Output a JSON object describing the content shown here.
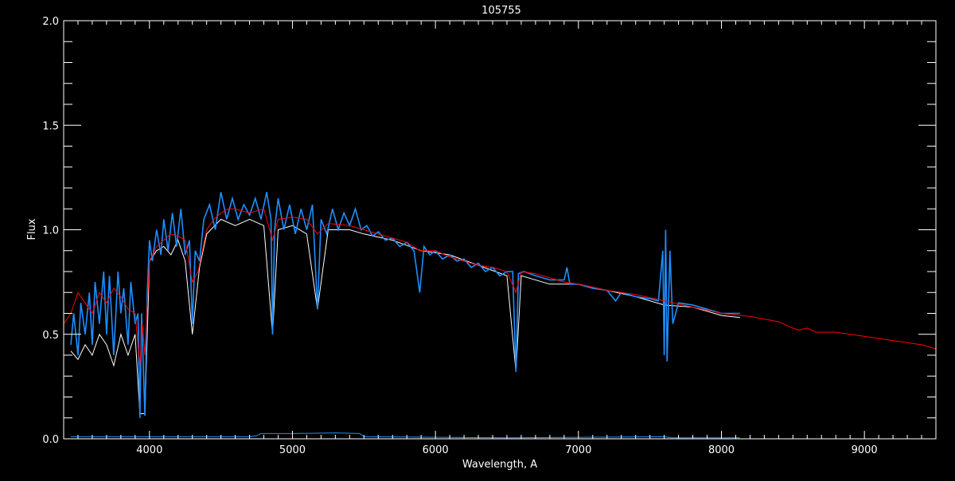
{
  "chart_data": {
    "type": "line",
    "title": "105755",
    "xlabel": "Wavelength, A",
    "ylabel": "Flux",
    "xlim": [
      3400,
      9500
    ],
    "ylim": [
      0,
      2.0
    ],
    "x_major_ticks": [
      4000,
      5000,
      6000,
      7000,
      8000,
      9000
    ],
    "x_tick_labels": [
      "4000",
      "5000",
      "6000",
      "7000",
      "8000",
      "9000"
    ],
    "x_minor_step": 100,
    "y_major_ticks": [
      0,
      0.5,
      1.0,
      1.5,
      2.0
    ],
    "y_tick_labels": [
      "0.0",
      "0.5",
      "1.0",
      "1.5",
      "2.0"
    ],
    "y_minor_step": 0.1,
    "grid": false,
    "background": "#000000",
    "axis_color": "#ffffff",
    "series": [
      {
        "color": "#ffffff",
        "points": [
          [
            3450,
            0.42
          ],
          [
            3500,
            0.38
          ],
          [
            3550,
            0.45
          ],
          [
            3600,
            0.4
          ],
          [
            3650,
            0.5
          ],
          [
            3700,
            0.45
          ],
          [
            3750,
            0.35
          ],
          [
            3800,
            0.5
          ],
          [
            3850,
            0.4
          ],
          [
            3900,
            0.5
          ],
          [
            3933,
            0.12
          ],
          [
            3968,
            0.12
          ],
          [
            4000,
            0.85
          ],
          [
            4050,
            0.9
          ],
          [
            4100,
            0.92
          ],
          [
            4150,
            0.88
          ],
          [
            4200,
            0.95
          ],
          [
            4250,
            0.85
          ],
          [
            4300,
            0.5
          ],
          [
            4350,
            0.82
          ],
          [
            4400,
            0.98
          ],
          [
            4500,
            1.05
          ],
          [
            4600,
            1.02
          ],
          [
            4700,
            1.05
          ],
          [
            4800,
            1.02
          ],
          [
            4861,
            0.5
          ],
          [
            4900,
            1.0
          ],
          [
            5000,
            1.02
          ],
          [
            5100,
            0.98
          ],
          [
            5175,
            0.62
          ],
          [
            5250,
            1.0
          ],
          [
            5400,
            1.0
          ],
          [
            5500,
            0.98
          ],
          [
            5700,
            0.95
          ],
          [
            5900,
            0.9
          ],
          [
            6100,
            0.88
          ],
          [
            6300,
            0.83
          ],
          [
            6500,
            0.78
          ],
          [
            6563,
            0.32
          ],
          [
            6600,
            0.78
          ],
          [
            6800,
            0.74
          ],
          [
            7000,
            0.74
          ],
          [
            7200,
            0.71
          ],
          [
            7400,
            0.68
          ],
          [
            7600,
            0.64
          ],
          [
            7800,
            0.63
          ],
          [
            8000,
            0.59
          ],
          [
            8130,
            0.58
          ]
        ]
      },
      {
        "color": "#1e8fff",
        "points": [
          [
            3450,
            0.45
          ],
          [
            3470,
            0.6
          ],
          [
            3500,
            0.4
          ],
          [
            3520,
            0.65
          ],
          [
            3550,
            0.5
          ],
          [
            3580,
            0.7
          ],
          [
            3600,
            0.45
          ],
          [
            3620,
            0.75
          ],
          [
            3650,
            0.55
          ],
          [
            3680,
            0.8
          ],
          [
            3700,
            0.5
          ],
          [
            3720,
            0.78
          ],
          [
            3750,
            0.4
          ],
          [
            3780,
            0.8
          ],
          [
            3800,
            0.6
          ],
          [
            3820,
            0.72
          ],
          [
            3850,
            0.45
          ],
          [
            3870,
            0.75
          ],
          [
            3900,
            0.55
          ],
          [
            3920,
            0.6
          ],
          [
            3933,
            0.1
          ],
          [
            3945,
            0.6
          ],
          [
            3968,
            0.11
          ],
          [
            3985,
            0.7
          ],
          [
            4000,
            0.95
          ],
          [
            4020,
            0.85
          ],
          [
            4050,
            1.0
          ],
          [
            4080,
            0.88
          ],
          [
            4100,
            1.05
          ],
          [
            4130,
            0.9
          ],
          [
            4160,
            1.08
          ],
          [
            4190,
            0.92
          ],
          [
            4220,
            1.1
          ],
          [
            4250,
            0.88
          ],
          [
            4280,
            0.95
          ],
          [
            4300,
            0.55
          ],
          [
            4320,
            0.9
          ],
          [
            4350,
            0.85
          ],
          [
            4380,
            1.05
          ],
          [
            4420,
            1.12
          ],
          [
            4460,
            1.0
          ],
          [
            4500,
            1.18
          ],
          [
            4540,
            1.05
          ],
          [
            4580,
            1.15
          ],
          [
            4620,
            1.05
          ],
          [
            4660,
            1.12
          ],
          [
            4700,
            1.07
          ],
          [
            4740,
            1.15
          ],
          [
            4780,
            1.05
          ],
          [
            4820,
            1.18
          ],
          [
            4850,
            1.05
          ],
          [
            4861,
            0.5
          ],
          [
            4875,
            1.0
          ],
          [
            4900,
            1.15
          ],
          [
            4940,
            1.0
          ],
          [
            4980,
            1.12
          ],
          [
            5020,
            0.98
          ],
          [
            5060,
            1.1
          ],
          [
            5100,
            1.0
          ],
          [
            5140,
            1.12
          ],
          [
            5175,
            0.62
          ],
          [
            5200,
            1.05
          ],
          [
            5240,
            0.98
          ],
          [
            5280,
            1.1
          ],
          [
            5320,
            1.0
          ],
          [
            5360,
            1.08
          ],
          [
            5400,
            1.02
          ],
          [
            5440,
            1.1
          ],
          [
            5480,
            1.0
          ],
          [
            5520,
            1.02
          ],
          [
            5560,
            0.97
          ],
          [
            5600,
            0.99
          ],
          [
            5650,
            0.95
          ],
          [
            5700,
            0.96
          ],
          [
            5750,
            0.92
          ],
          [
            5800,
            0.94
          ],
          [
            5850,
            0.9
          ],
          [
            5890,
            0.7
          ],
          [
            5920,
            0.92
          ],
          [
            5960,
            0.88
          ],
          [
            6000,
            0.9
          ],
          [
            6050,
            0.86
          ],
          [
            6100,
            0.88
          ],
          [
            6150,
            0.85
          ],
          [
            6200,
            0.86
          ],
          [
            6250,
            0.82
          ],
          [
            6300,
            0.84
          ],
          [
            6350,
            0.8
          ],
          [
            6400,
            0.82
          ],
          [
            6450,
            0.78
          ],
          [
            6500,
            0.8
          ],
          [
            6540,
            0.8
          ],
          [
            6563,
            0.32
          ],
          [
            6580,
            0.79
          ],
          [
            6620,
            0.8
          ],
          [
            6700,
            0.78
          ],
          [
            6800,
            0.76
          ],
          [
            6900,
            0.76
          ],
          [
            6920,
            0.82
          ],
          [
            6940,
            0.74
          ],
          [
            7000,
            0.74
          ],
          [
            7100,
            0.72
          ],
          [
            7200,
            0.71
          ],
          [
            7260,
            0.66
          ],
          [
            7300,
            0.7
          ],
          [
            7400,
            0.68
          ],
          [
            7500,
            0.67
          ],
          [
            7560,
            0.66
          ],
          [
            7590,
            0.9
          ],
          [
            7600,
            0.4
          ],
          [
            7610,
            1.0
          ],
          [
            7620,
            0.37
          ],
          [
            7640,
            0.9
          ],
          [
            7660,
            0.55
          ],
          [
            7700,
            0.65
          ],
          [
            7800,
            0.64
          ],
          [
            7900,
            0.62
          ],
          [
            8000,
            0.6
          ],
          [
            8100,
            0.6
          ],
          [
            8130,
            0.6
          ]
        ]
      },
      {
        "color": "#ff0000",
        "points": [
          [
            3400,
            0.55
          ],
          [
            3450,
            0.6
          ],
          [
            3500,
            0.7
          ],
          [
            3550,
            0.65
          ],
          [
            3600,
            0.6
          ],
          [
            3650,
            0.7
          ],
          [
            3700,
            0.65
          ],
          [
            3750,
            0.72
          ],
          [
            3800,
            0.68
          ],
          [
            3850,
            0.62
          ],
          [
            3900,
            0.6
          ],
          [
            3933,
            0.35
          ],
          [
            3950,
            0.55
          ],
          [
            3968,
            0.4
          ],
          [
            4000,
            0.85
          ],
          [
            4050,
            0.92
          ],
          [
            4100,
            0.95
          ],
          [
            4150,
            0.98
          ],
          [
            4200,
            0.97
          ],
          [
            4250,
            0.95
          ],
          [
            4300,
            0.75
          ],
          [
            4340,
            0.8
          ],
          [
            4400,
            1.0
          ],
          [
            4450,
            1.05
          ],
          [
            4500,
            1.08
          ],
          [
            4550,
            1.1
          ],
          [
            4600,
            1.1
          ],
          [
            4700,
            1.08
          ],
          [
            4800,
            1.1
          ],
          [
            4861,
            0.95
          ],
          [
            4900,
            1.05
          ],
          [
            5000,
            1.06
          ],
          [
            5100,
            1.05
          ],
          [
            5175,
            0.98
          ],
          [
            5250,
            1.03
          ],
          [
            5400,
            1.02
          ],
          [
            5500,
            1.0
          ],
          [
            5600,
            0.98
          ],
          [
            5700,
            0.96
          ],
          [
            5800,
            0.94
          ],
          [
            5890,
            0.9
          ],
          [
            6000,
            0.9
          ],
          [
            6100,
            0.87
          ],
          [
            6200,
            0.85
          ],
          [
            6300,
            0.83
          ],
          [
            6400,
            0.82
          ],
          [
            6500,
            0.8
          ],
          [
            6563,
            0.7
          ],
          [
            6600,
            0.8
          ],
          [
            6700,
            0.79
          ],
          [
            6800,
            0.77
          ],
          [
            6900,
            0.75
          ],
          [
            7000,
            0.74
          ],
          [
            7200,
            0.71
          ],
          [
            7400,
            0.69
          ],
          [
            7600,
            0.66
          ],
          [
            7800,
            0.63
          ],
          [
            8000,
            0.6
          ],
          [
            8200,
            0.585
          ],
          [
            8400,
            0.56
          ],
          [
            8498,
            0.53
          ],
          [
            8542,
            0.52
          ],
          [
            8600,
            0.53
          ],
          [
            8662,
            0.51
          ],
          [
            8800,
            0.51
          ],
          [
            9000,
            0.49
          ],
          [
            9200,
            0.47
          ],
          [
            9300,
            0.46
          ],
          [
            9400,
            0.45
          ],
          [
            9500,
            0.43
          ]
        ]
      },
      {
        "color": "#1e8fff",
        "points": [
          [
            3450,
            0.01
          ],
          [
            4700,
            0.01
          ],
          [
            4750,
            0.015
          ],
          [
            4780,
            0.025
          ],
          [
            5000,
            0.025
          ],
          [
            5300,
            0.028
          ],
          [
            5470,
            0.025
          ],
          [
            5500,
            0.01
          ],
          [
            6500,
            0.005
          ],
          [
            7600,
            0.01
          ],
          [
            7650,
            0.005
          ],
          [
            8130,
            0.005
          ]
        ]
      }
    ]
  }
}
